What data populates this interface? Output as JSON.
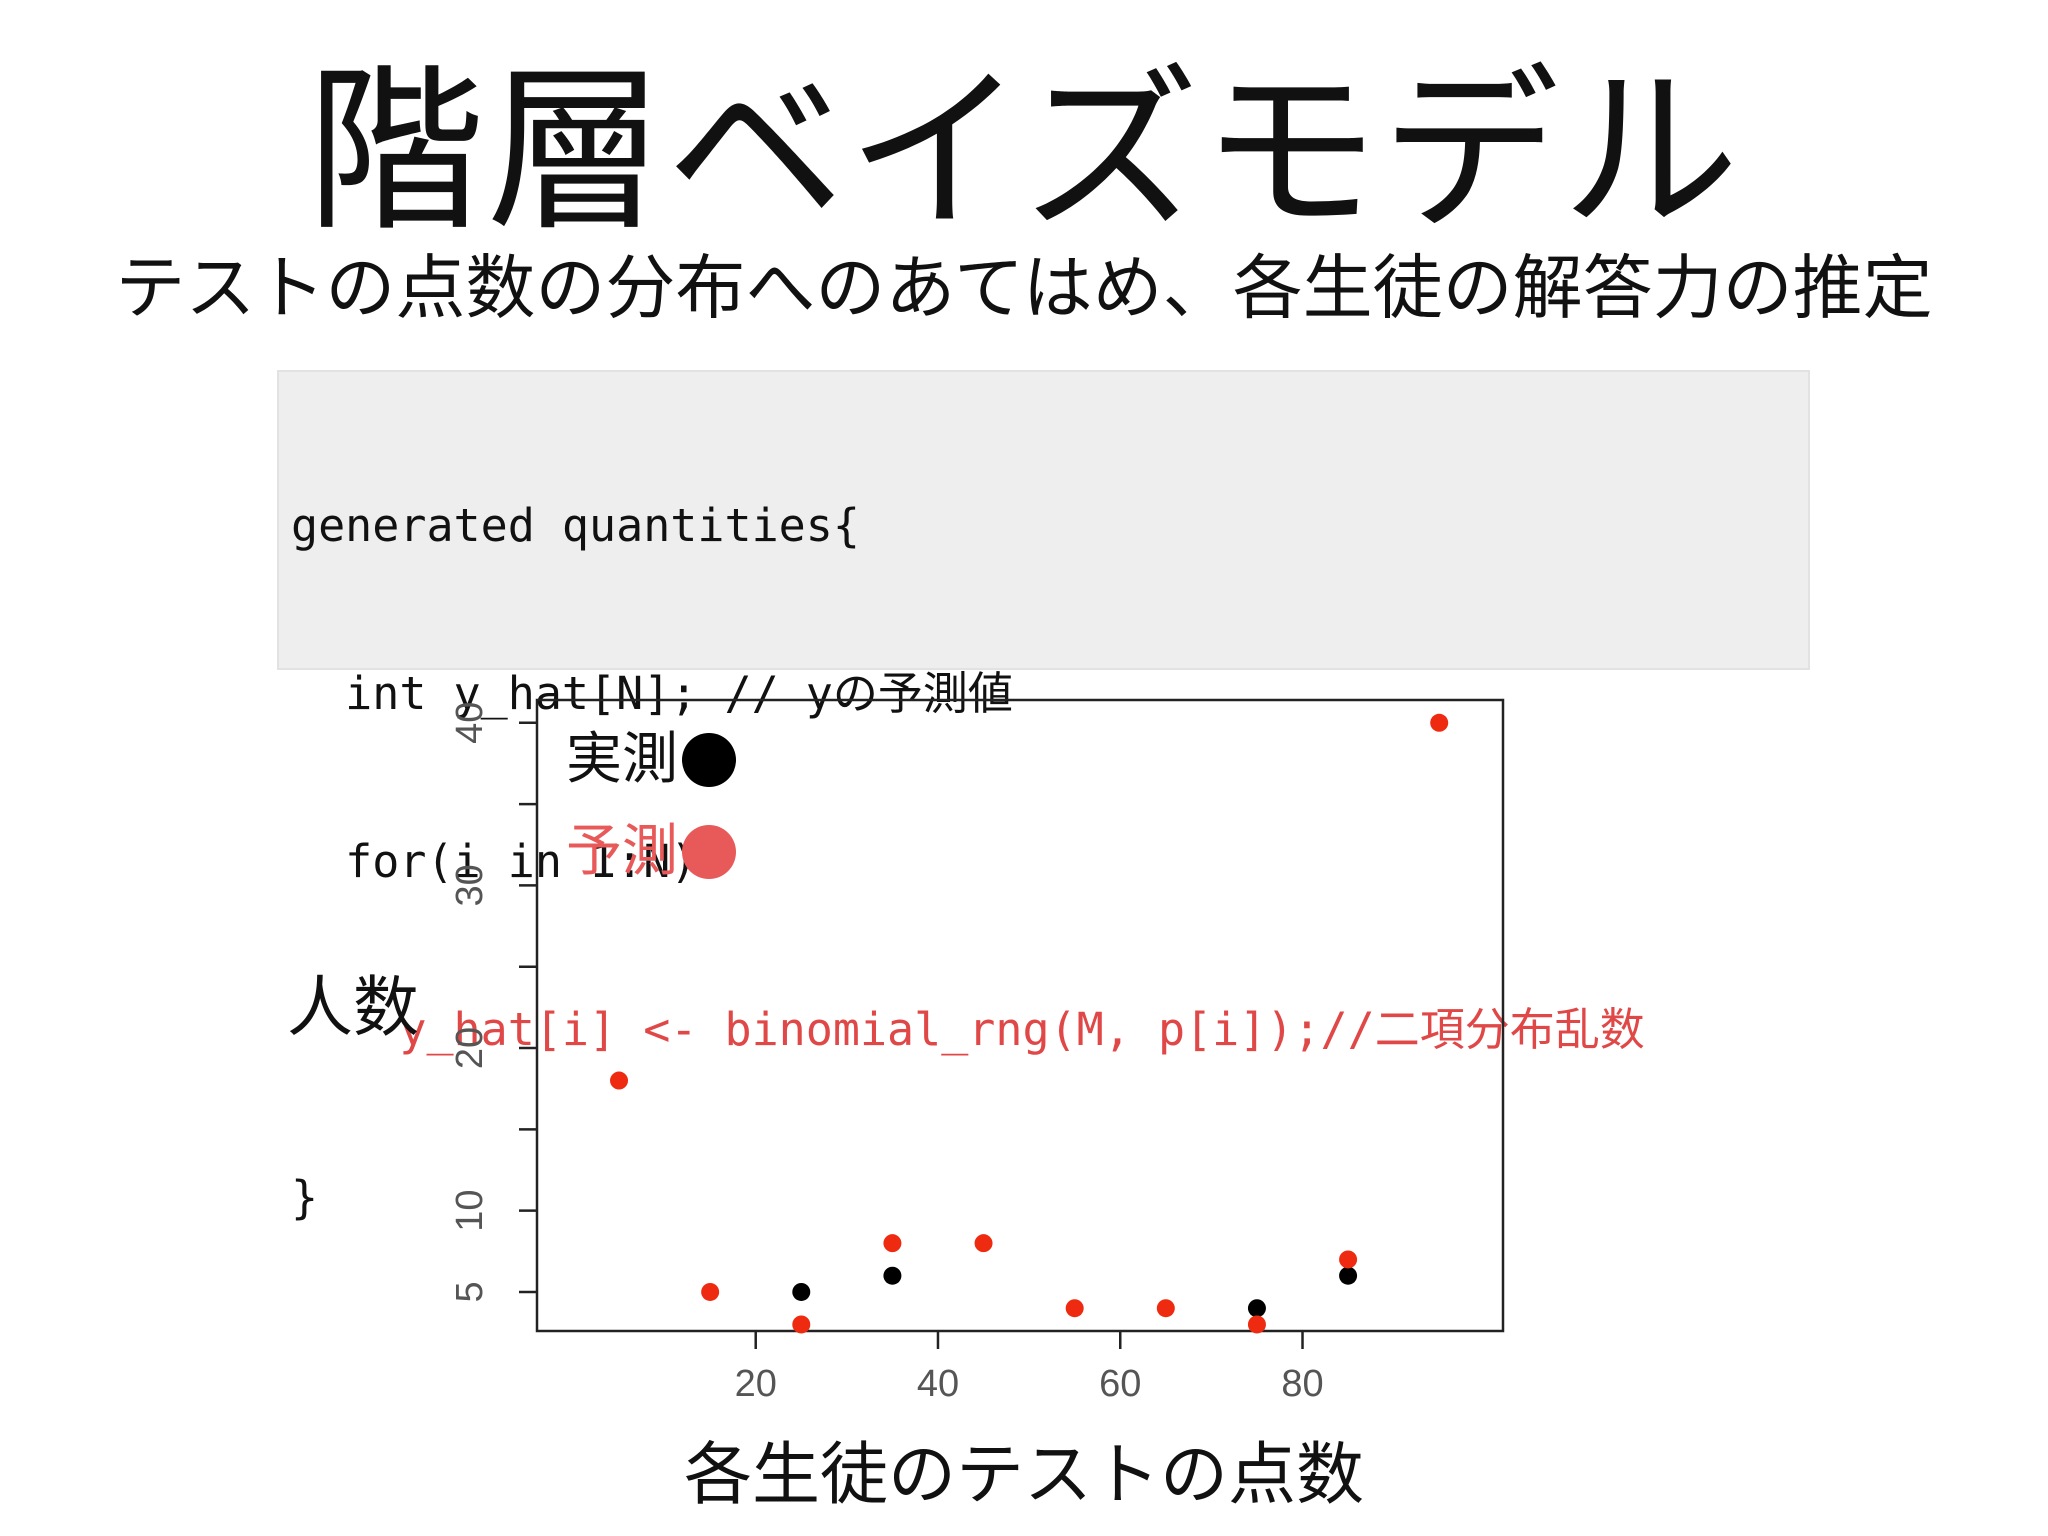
{
  "title": "階層ベイズモデル",
  "subtitle": "テストの点数の分布へのあてはめ、各生徒の解答力の推定",
  "code": {
    "lines": [
      {
        "text": "generated quantities{",
        "color": "#111111"
      },
      {
        "text": "  int y_hat[N]; // yの予測値",
        "color": "#111111"
      },
      {
        "text": "  for(i in 1:N)",
        "color": "#111111"
      },
      {
        "text": "    y_hat[i] <- binomial_rng(M, p[i]);//二項分布乱数",
        "color": "#e04848"
      },
      {
        "text": "}",
        "color": "#111111"
      }
    ]
  },
  "legend": {
    "observed_label": "実測",
    "predicted_label": "予測",
    "observed_color": "#000000",
    "predicted_color": "#e85a5a"
  },
  "axis_labels": {
    "y": "人数",
    "x": "各生徒のテストの点数"
  },
  "chart_data": {
    "type": "scatter",
    "xlim": [
      -4,
      102
    ],
    "ylim": [
      2.6,
      41.4
    ],
    "x_ticks": [
      20,
      40,
      60,
      80
    ],
    "y_ticks": [
      5,
      10,
      20,
      30,
      40
    ],
    "y_minor_ticks": [
      15,
      25,
      35
    ],
    "grid": false,
    "series": [
      {
        "name": "実測",
        "color": "#000000",
        "points": [
          {
            "x": 25,
            "y": 5
          },
          {
            "x": 35,
            "y": 6
          },
          {
            "x": 75,
            "y": 4
          },
          {
            "x": 85,
            "y": 6
          }
        ]
      },
      {
        "name": "予測",
        "color": "#ee2a10",
        "points": [
          {
            "x": 5,
            "y": 18
          },
          {
            "x": 15,
            "y": 5
          },
          {
            "x": 25,
            "y": 3
          },
          {
            "x": 35,
            "y": 8
          },
          {
            "x": 45,
            "y": 8
          },
          {
            "x": 55,
            "y": 4
          },
          {
            "x": 65,
            "y": 4
          },
          {
            "x": 75,
            "y": 3
          },
          {
            "x": 85,
            "y": 7
          },
          {
            "x": 95,
            "y": 40
          }
        ]
      }
    ]
  }
}
